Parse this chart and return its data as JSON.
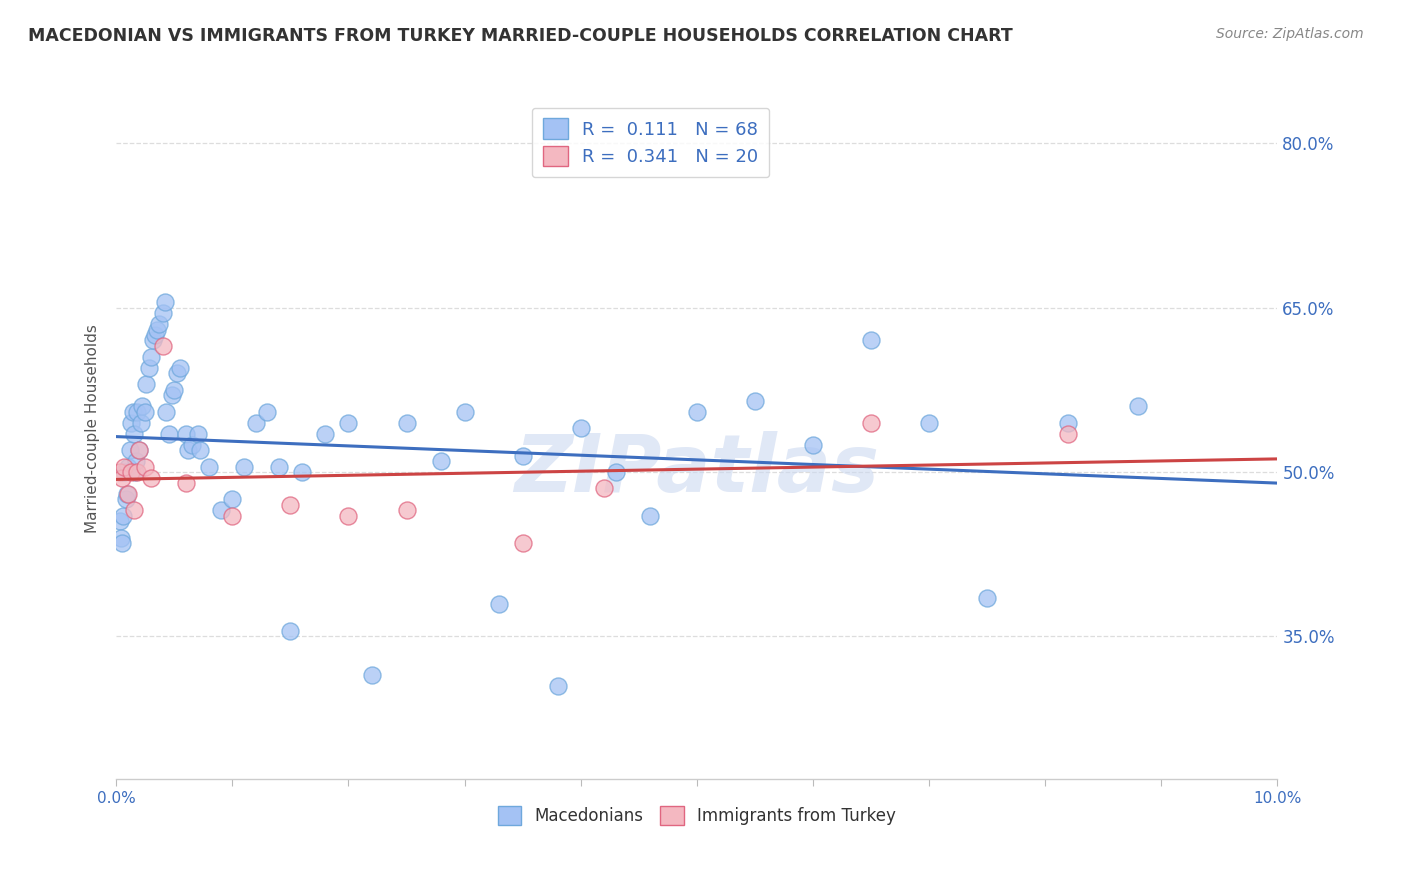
{
  "title": "MACEDONIAN VS IMMIGRANTS FROM TURKEY MARRIED-COUPLE HOUSEHOLDS CORRELATION CHART",
  "source": "Source: ZipAtlas.com",
  "ylabel": "Married-couple Households",
  "yticks": [
    "80.0%",
    "65.0%",
    "50.0%",
    "35.0%"
  ],
  "ytick_vals": [
    0.8,
    0.65,
    0.5,
    0.35
  ],
  "watermark": "ZIPatlas",
  "legend_label1": "Macedonians",
  "legend_label2": "Immigrants from Turkey",
  "r1": "0.111",
  "n1": "68",
  "r2": "0.341",
  "n2": "20",
  "color_blue": "#a4c2f4",
  "color_pink": "#f4b8c1",
  "edge_blue": "#6fa8dc",
  "edge_pink": "#e06680",
  "line_color_blue": "#3d6ebf",
  "line_color_pink": "#cc4444",
  "macedonian_x": [
    0.0003,
    0.0004,
    0.0005,
    0.0006,
    0.0007,
    0.0008,
    0.0009,
    0.001,
    0.0012,
    0.0013,
    0.0014,
    0.0015,
    0.0016,
    0.0017,
    0.0018,
    0.002,
    0.0021,
    0.0022,
    0.0025,
    0.0026,
    0.0028,
    0.003,
    0.0032,
    0.0033,
    0.0035,
    0.0037,
    0.004,
    0.0042,
    0.0043,
    0.0045,
    0.0048,
    0.005,
    0.0052,
    0.0055,
    0.006,
    0.0062,
    0.0065,
    0.007,
    0.0072,
    0.008,
    0.009,
    0.01,
    0.011,
    0.012,
    0.013,
    0.014,
    0.015,
    0.016,
    0.018,
    0.02,
    0.022,
    0.025,
    0.028,
    0.03,
    0.033,
    0.035,
    0.038,
    0.04,
    0.043,
    0.046,
    0.05,
    0.055,
    0.06,
    0.065,
    0.07,
    0.075,
    0.082,
    0.088
  ],
  "macedonian_y": [
    0.455,
    0.44,
    0.435,
    0.46,
    0.5,
    0.475,
    0.48,
    0.505,
    0.52,
    0.545,
    0.555,
    0.535,
    0.5,
    0.51,
    0.555,
    0.52,
    0.545,
    0.56,
    0.555,
    0.58,
    0.595,
    0.605,
    0.62,
    0.625,
    0.63,
    0.635,
    0.645,
    0.655,
    0.555,
    0.535,
    0.57,
    0.575,
    0.59,
    0.595,
    0.535,
    0.52,
    0.525,
    0.535,
    0.52,
    0.505,
    0.465,
    0.475,
    0.505,
    0.545,
    0.555,
    0.505,
    0.355,
    0.5,
    0.535,
    0.545,
    0.315,
    0.545,
    0.51,
    0.555,
    0.38,
    0.515,
    0.305,
    0.54,
    0.5,
    0.46,
    0.555,
    0.565,
    0.525,
    0.62,
    0.545,
    0.385,
    0.545,
    0.56
  ],
  "turkey_x": [
    0.0003,
    0.0005,
    0.0007,
    0.001,
    0.0013,
    0.0015,
    0.0018,
    0.002,
    0.0025,
    0.003,
    0.004,
    0.006,
    0.01,
    0.015,
    0.02,
    0.025,
    0.035,
    0.042,
    0.065,
    0.082
  ],
  "turkey_y": [
    0.5,
    0.495,
    0.505,
    0.48,
    0.5,
    0.465,
    0.5,
    0.52,
    0.505,
    0.495,
    0.615,
    0.49,
    0.46,
    0.47,
    0.46,
    0.465,
    0.435,
    0.485,
    0.545,
    0.535
  ],
  "xmin": 0.0,
  "xmax": 0.1,
  "ymin": 0.22,
  "ymax": 0.86,
  "background_color": "#ffffff",
  "grid_color": "#dddddd",
  "ytick_color": "#3d6ebf",
  "title_color": "#333333",
  "source_color": "#888888",
  "watermark_color": "#ccd9f0",
  "watermark_alpha": 0.6
}
